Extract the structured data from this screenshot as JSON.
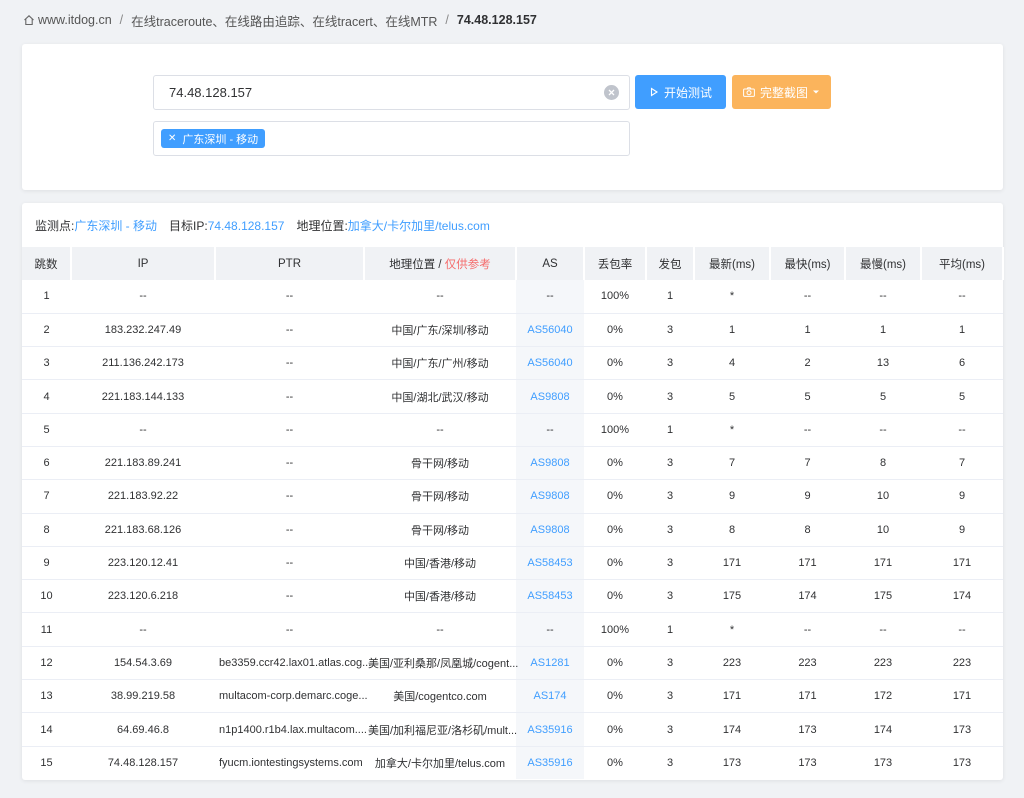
{
  "breadcrumb": {
    "home": "www.itdog.cn",
    "section": "在线traceroute、在线路由追踪、在线tracert、在线MTR",
    "current": "74.48.128.157"
  },
  "form": {
    "target_value": "74.48.128.157",
    "start_button": "开始测试",
    "screenshot_button": "完整截图",
    "tag": "广东深圳 - 移动"
  },
  "info": {
    "monitor_label": "监测点:",
    "monitor_value": "广东深圳 - 移动",
    "target_label": "目标IP:",
    "target_value": "74.48.128.157",
    "geo_label": "地理位置:",
    "geo_value": "加拿大/卡尔加里/telus.com"
  },
  "table": {
    "headers": {
      "hop": "跳数",
      "ip": "IP",
      "ptr": "PTR",
      "geo": "地理位置",
      "geo_sep": " / ",
      "geo_ref": "仅供参考",
      "as": "AS",
      "loss": "丢包率",
      "sent": "发包",
      "last": "最新(ms)",
      "best": "最快(ms)",
      "worst": "最慢(ms)",
      "avg": "平均(ms)"
    },
    "rows": [
      {
        "hop": "1",
        "ip": "--",
        "ptr": "--",
        "geo": "--",
        "as": "--",
        "loss": "100%",
        "sent": "1",
        "last": "*",
        "best": "--",
        "worst": "--",
        "avg": "--"
      },
      {
        "hop": "2",
        "ip": "183.232.247.49",
        "ptr": "--",
        "geo": "中国/广东/深圳/移动",
        "as": "AS56040",
        "loss": "0%",
        "sent": "3",
        "last": "1",
        "best": "1",
        "worst": "1",
        "avg": "1"
      },
      {
        "hop": "3",
        "ip": "211.136.242.173",
        "ptr": "--",
        "geo": "中国/广东/广州/移动",
        "as": "AS56040",
        "loss": "0%",
        "sent": "3",
        "last": "4",
        "best": "2",
        "worst": "13",
        "avg": "6"
      },
      {
        "hop": "4",
        "ip": "221.183.144.133",
        "ptr": "--",
        "geo": "中国/湖北/武汉/移动",
        "as": "AS9808",
        "loss": "0%",
        "sent": "3",
        "last": "5",
        "best": "5",
        "worst": "5",
        "avg": "5"
      },
      {
        "hop": "5",
        "ip": "--",
        "ptr": "--",
        "geo": "--",
        "as": "--",
        "loss": "100%",
        "sent": "1",
        "last": "*",
        "best": "--",
        "worst": "--",
        "avg": "--"
      },
      {
        "hop": "6",
        "ip": "221.183.89.241",
        "ptr": "--",
        "geo": "骨干网/移动",
        "as": "AS9808",
        "loss": "0%",
        "sent": "3",
        "last": "7",
        "best": "7",
        "worst": "8",
        "avg": "7"
      },
      {
        "hop": "7",
        "ip": "221.183.92.22",
        "ptr": "--",
        "geo": "骨干网/移动",
        "as": "AS9808",
        "loss": "0%",
        "sent": "3",
        "last": "9",
        "best": "9",
        "worst": "10",
        "avg": "9"
      },
      {
        "hop": "8",
        "ip": "221.183.68.126",
        "ptr": "--",
        "geo": "骨干网/移动",
        "as": "AS9808",
        "loss": "0%",
        "sent": "3",
        "last": "8",
        "best": "8",
        "worst": "10",
        "avg": "9"
      },
      {
        "hop": "9",
        "ip": "223.120.12.41",
        "ptr": "--",
        "geo": "中国/香港/移动",
        "as": "AS58453",
        "loss": "0%",
        "sent": "3",
        "last": "171",
        "best": "171",
        "worst": "171",
        "avg": "171"
      },
      {
        "hop": "10",
        "ip": "223.120.6.218",
        "ptr": "--",
        "geo": "中国/香港/移动",
        "as": "AS58453",
        "loss": "0%",
        "sent": "3",
        "last": "175",
        "best": "174",
        "worst": "175",
        "avg": "174"
      },
      {
        "hop": "11",
        "ip": "--",
        "ptr": "--",
        "geo": "--",
        "as": "--",
        "loss": "100%",
        "sent": "1",
        "last": "*",
        "best": "--",
        "worst": "--",
        "avg": "--"
      },
      {
        "hop": "12",
        "ip": "154.54.3.69",
        "ptr": "be3359.ccr42.lax01.atlas.cog...",
        "geo": "美国/亚利桑那/凤凰城/cogent...",
        "as": "AS1281",
        "loss": "0%",
        "sent": "3",
        "last": "223",
        "best": "223",
        "worst": "223",
        "avg": "223"
      },
      {
        "hop": "13",
        "ip": "38.99.219.58",
        "ptr": "multacom-corp.demarc.coge...",
        "geo": "美国/cogentco.com",
        "as": "AS174",
        "loss": "0%",
        "sent": "3",
        "last": "171",
        "best": "171",
        "worst": "172",
        "avg": "171"
      },
      {
        "hop": "14",
        "ip": "64.69.46.8",
        "ptr": "n1p1400.r1b4.lax.multacom....",
        "geo": "美国/加利福尼亚/洛杉矶/mult...",
        "as": "AS35916",
        "loss": "0%",
        "sent": "3",
        "last": "174",
        "best": "173",
        "worst": "174",
        "avg": "173"
      },
      {
        "hop": "15",
        "ip": "74.48.128.157",
        "ptr": "fyucm.iontestingsystems.com",
        "geo": "加拿大/卡尔加里/telus.com",
        "as": "AS35916",
        "loss": "0%",
        "sent": "3",
        "last": "173",
        "best": "173",
        "worst": "173",
        "avg": "173"
      }
    ]
  }
}
